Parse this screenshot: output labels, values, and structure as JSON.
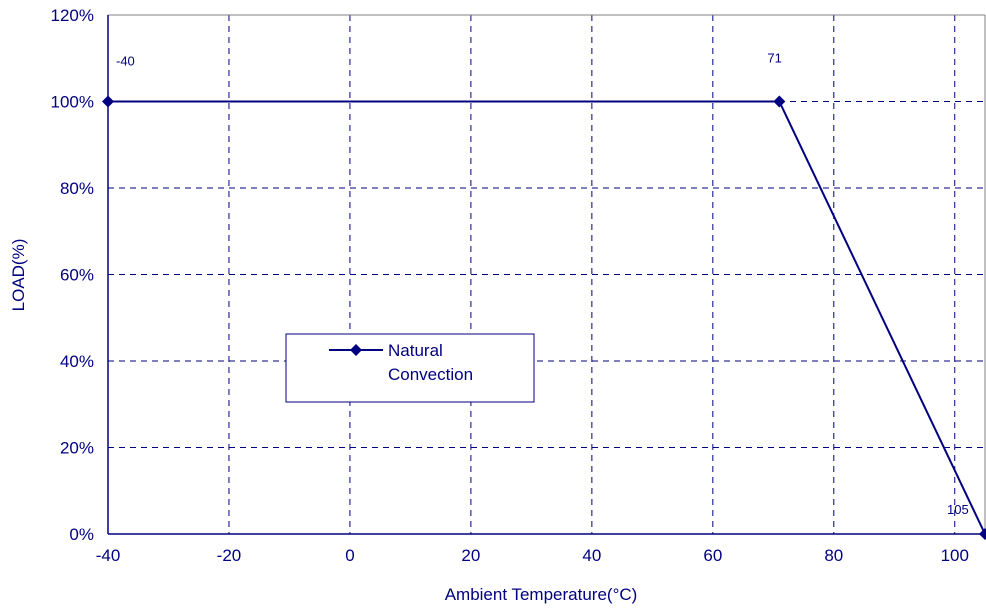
{
  "chart_data": {
    "type": "line",
    "title": "",
    "xlabel": "Ambient Temperature(°C)",
    "ylabel": "LOAD(%)",
    "xlim": [
      -40,
      105
    ],
    "ylim": [
      0,
      120
    ],
    "x_ticks": [
      -40,
      -20,
      0,
      20,
      40,
      60,
      80,
      100
    ],
    "x_tick_labels": [
      "-40",
      "-20",
      "0",
      "20",
      "40",
      "60",
      "80",
      "100"
    ],
    "y_ticks": [
      0,
      20,
      40,
      60,
      80,
      100,
      120
    ],
    "y_tick_labels": [
      "0%",
      "20%",
      "40%",
      "60%",
      "80%",
      "100%",
      "120%"
    ],
    "grid": true,
    "legend": {
      "placement": "center-left",
      "entries": [
        "Natural\nConvection"
      ]
    },
    "series": [
      {
        "name": "Natural\nConvection",
        "color": "#000080",
        "marker": "diamond",
        "points": [
          {
            "x": -40,
            "y": 100
          },
          {
            "x": 71,
            "y": 100
          },
          {
            "x": 105,
            "y": 0
          }
        ]
      }
    ],
    "annotations": [
      {
        "text": "-40",
        "x": -40,
        "y": 100
      },
      {
        "text": "71",
        "x": 71,
        "y": 100
      },
      {
        "text": "105",
        "x": 105,
        "y": 0
      }
    ]
  }
}
